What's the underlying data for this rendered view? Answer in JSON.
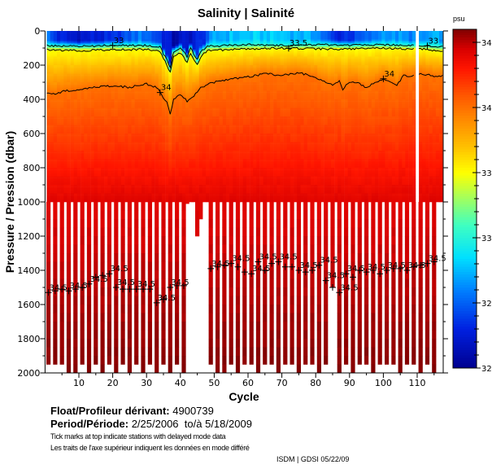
{
  "chart_data": {
    "type": "heatmap",
    "title": "Salinity | Salinité",
    "xlabel": "Cycle",
    "ylabel": "Pressure / Pression (dbar)",
    "xlim": [
      0,
      117.7
    ],
    "ylim": [
      2000,
      0
    ],
    "xticks": [
      10,
      20,
      30,
      40,
      50,
      60,
      70,
      80,
      90,
      100,
      110
    ],
    "yticks": [
      0,
      200,
      400,
      600,
      800,
      1000,
      1200,
      1400,
      1600,
      1800,
      2000
    ],
    "colorbar": {
      "unit": "psu",
      "clim": [
        32,
        34.6
      ],
      "ticks": [
        32,
        32.5,
        33,
        33.5,
        34,
        34.5
      ]
    },
    "missing_cycles": [
      110
    ],
    "surface_salinity": [
      [
        0,
        32.6
      ],
      [
        4,
        32.3
      ],
      [
        10,
        32.2
      ],
      [
        20,
        32.3
      ],
      [
        28,
        32.6
      ],
      [
        34,
        32.4
      ],
      [
        38,
        32.1
      ],
      [
        42,
        32.2
      ],
      [
        46,
        32.3
      ],
      [
        50,
        32.7
      ],
      [
        60,
        32.8
      ],
      [
        70,
        32.8
      ],
      [
        80,
        32.7
      ],
      [
        86,
        32.3
      ],
      [
        92,
        32.4
      ],
      [
        96,
        32.5
      ],
      [
        100,
        32.7
      ],
      [
        108,
        32.6
      ],
      [
        116,
        32.7
      ]
    ],
    "contours": [
      {
        "level": 33,
        "label": "33",
        "points": [
          [
            0,
            85
          ],
          [
            10,
            90
          ],
          [
            20,
            85
          ],
          [
            30,
            85
          ],
          [
            34,
            95
          ],
          [
            36,
            170
          ],
          [
            37,
            210
          ],
          [
            38,
            120
          ],
          [
            40,
            100
          ],
          [
            42,
            150
          ],
          [
            43,
            100
          ],
          [
            45,
            170
          ],
          [
            46,
            120
          ],
          [
            48,
            90
          ],
          [
            60,
            80
          ],
          [
            70,
            85
          ],
          [
            80,
            80
          ],
          [
            90,
            85
          ],
          [
            100,
            80
          ],
          [
            108,
            85
          ],
          [
            111,
            85
          ],
          [
            116,
            90
          ]
        ]
      },
      {
        "level": 33.5,
        "label": "33.5",
        "points": [
          [
            0,
            110
          ],
          [
            10,
            115
          ],
          [
            20,
            110
          ],
          [
            30,
            108
          ],
          [
            34,
            120
          ],
          [
            36,
            200
          ],
          [
            37,
            245
          ],
          [
            38,
            150
          ],
          [
            40,
            130
          ],
          [
            42,
            185
          ],
          [
            43,
            130
          ],
          [
            45,
            200
          ],
          [
            46,
            150
          ],
          [
            48,
            115
          ],
          [
            60,
            105
          ],
          [
            70,
            100
          ],
          [
            80,
            105
          ],
          [
            90,
            105
          ],
          [
            100,
            100
          ],
          [
            108,
            105
          ],
          [
            111,
            105
          ],
          [
            116,
            115
          ]
        ]
      },
      {
        "level": 34,
        "label": "34",
        "points": [
          [
            0,
            360
          ],
          [
            3,
            370
          ],
          [
            6,
            350
          ],
          [
            10,
            345
          ],
          [
            15,
            330
          ],
          [
            20,
            320
          ],
          [
            25,
            330
          ],
          [
            30,
            310
          ],
          [
            33,
            330
          ],
          [
            36,
            420
          ],
          [
            37,
            490
          ],
          [
            38,
            400
          ],
          [
            40,
            370
          ],
          [
            42,
            410
          ],
          [
            44,
            380
          ],
          [
            46,
            330
          ],
          [
            50,
            300
          ],
          [
            55,
            280
          ],
          [
            60,
            270
          ],
          [
            65,
            250
          ],
          [
            70,
            260
          ],
          [
            75,
            245
          ],
          [
            80,
            270
          ],
          [
            85,
            320
          ],
          [
            87,
            290
          ],
          [
            88,
            340
          ],
          [
            90,
            300
          ],
          [
            92,
            300
          ],
          [
            95,
            330
          ],
          [
            100,
            280
          ],
          [
            104,
            320
          ],
          [
            106,
            260
          ],
          [
            108,
            265
          ],
          [
            111,
            250
          ],
          [
            116,
            265
          ]
        ]
      },
      {
        "level": 34.5,
        "label": "34.5",
        "points": [
          [
            1,
            1530
          ],
          [
            3,
            1520
          ],
          [
            5,
            1510
          ],
          [
            7,
            1520
          ],
          [
            9,
            1510
          ],
          [
            11,
            1500
          ],
          [
            13,
            1480
          ],
          [
            15,
            1440
          ],
          [
            17,
            1430
          ],
          [
            19,
            1420
          ],
          [
            21,
            1500
          ],
          [
            23,
            1510
          ],
          [
            25,
            1510
          ],
          [
            27,
            1510
          ],
          [
            29,
            1510
          ],
          [
            31,
            1510
          ],
          [
            33,
            1590
          ],
          [
            35,
            1570
          ],
          [
            37,
            1500
          ],
          [
            39,
            1490
          ],
          [
            41,
            1490
          ],
          [
            49,
            1390
          ],
          [
            51,
            1380
          ],
          [
            53,
            1370
          ],
          [
            55,
            1360
          ],
          [
            57,
            1380
          ],
          [
            59,
            1410
          ],
          [
            61,
            1420
          ],
          [
            63,
            1350
          ],
          [
            65,
            1400
          ],
          [
            67,
            1360
          ],
          [
            69,
            1350
          ],
          [
            71,
            1380
          ],
          [
            73,
            1380
          ],
          [
            75,
            1400
          ],
          [
            77,
            1410
          ],
          [
            79,
            1400
          ],
          [
            81,
            1370
          ],
          [
            83,
            1460
          ],
          [
            85,
            1500
          ],
          [
            87,
            1530
          ],
          [
            89,
            1420
          ],
          [
            91,
            1440
          ],
          [
            93,
            1400
          ],
          [
            95,
            1410
          ],
          [
            97,
            1400
          ],
          [
            99,
            1420
          ],
          [
            101,
            1400
          ],
          [
            103,
            1390
          ],
          [
            105,
            1390
          ],
          [
            107,
            1400
          ],
          [
            109,
            1380
          ],
          [
            111,
            1370
          ],
          [
            113,
            1360
          ],
          [
            115,
            1350
          ]
        ]
      }
    ],
    "deep_profiles": {
      "cycles": [
        1,
        3,
        5,
        7,
        9,
        11,
        13,
        15,
        17,
        19,
        21,
        23,
        25,
        27,
        29,
        31,
        33,
        35,
        37,
        39,
        41,
        42,
        43,
        44,
        45,
        46,
        49,
        51,
        53,
        55,
        57,
        59,
        61,
        63,
        65,
        67,
        69,
        71,
        73,
        75,
        77,
        79,
        81,
        83,
        85,
        87,
        89,
        91,
        93,
        95,
        97,
        99,
        101,
        103,
        105,
        107,
        109,
        111,
        113,
        115
      ],
      "max_pressure": [
        1950,
        1950,
        1950,
        2000,
        2000,
        1950,
        2000,
        1950,
        2000,
        1950,
        2000,
        1950,
        2000,
        1950,
        2000,
        1950,
        2000,
        1950,
        2000,
        1950,
        2000,
        1010,
        990,
        970,
        1200,
        1100,
        1950,
        2000,
        2000,
        1950,
        2000,
        1950,
        1950,
        2000,
        1950,
        1950,
        2000,
        1950,
        1950,
        2000,
        1950,
        1950,
        2000,
        1950,
        1500,
        2000,
        1950,
        2000,
        1950,
        1950,
        2000,
        1950,
        1950,
        1950,
        2000,
        1950,
        1950,
        2000,
        1950,
        2000
      ]
    }
  },
  "info": {
    "float_label": "Float/Profileur dérivant:",
    "float_id": "4900739",
    "period_label": "Period/Période:",
    "period_start": "2/25/2006",
    "period_sep": "to/à",
    "period_end": "5/18/2009",
    "note_en": "Tick marks at top indicate stations with delayed mode data",
    "note_fr": "Les traits de l'axe supérieur indiquent les données en mode différé",
    "credit": "ISDM | GDSI  05/22/09"
  }
}
